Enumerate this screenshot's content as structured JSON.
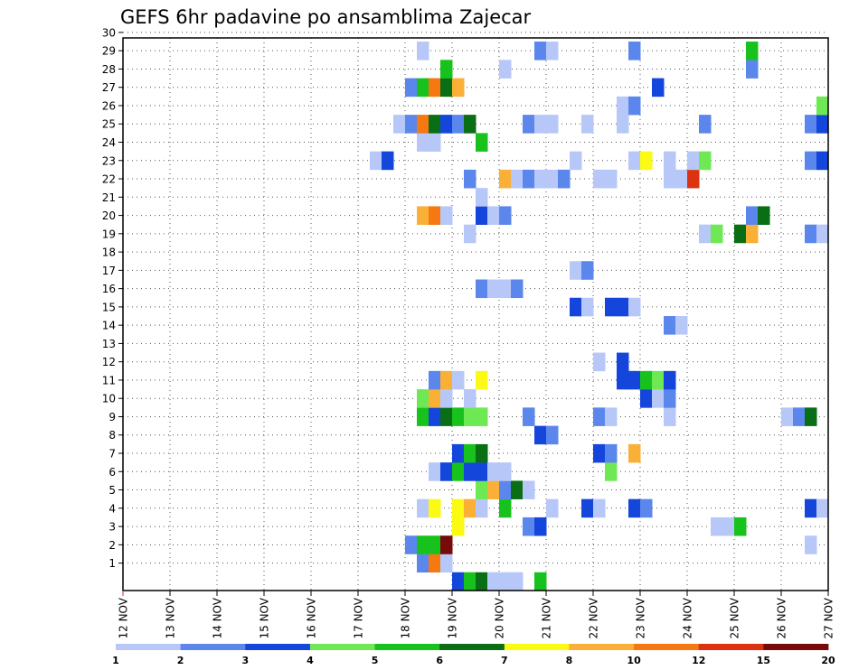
{
  "chart_data": {
    "type": "heatmap",
    "title": "GEFS 6hr padavine po ansamblima Zajecar",
    "xlabel": "",
    "ylabel": "",
    "x_tick_labels": [
      "12 NOV",
      "13 NOV",
      "14 NOV",
      "15 NOV",
      "16 NOV",
      "17 NOV",
      "18 NOV",
      "19 NOV",
      "20 NOV",
      "21 NOV",
      "22 NOV",
      "23 NOV",
      "24 NOV",
      "25 NOV",
      "26 NOV",
      "27 NOV"
    ],
    "x_range_days": [
      12,
      27
    ],
    "y_tick_labels": [
      "1",
      "2",
      "3",
      "4",
      "5",
      "6",
      "7",
      "8",
      "9",
      "10",
      "11",
      "12",
      "13",
      "14",
      "15",
      "16",
      "17",
      "18",
      "19",
      "20",
      "21",
      "22",
      "23",
      "24",
      "25",
      "26",
      "27",
      "28",
      "29",
      "30"
    ],
    "y_range_members": [
      0,
      30
    ],
    "grid": true,
    "colorbar": {
      "placement": "bottom",
      "boundaries": [
        "1",
        "2",
        "3",
        "4",
        "5",
        "6",
        "7",
        "8",
        "10",
        "12",
        "15",
        "20"
      ],
      "colors": [
        "#b7c8f8",
        "#5b87ec",
        "#1446dc",
        "#6ee954",
        "#18c21c",
        "#0a6e14",
        "#fafa14",
        "#faaf37",
        "#f57810",
        "#dc3210",
        "#780a0a"
      ]
    },
    "cells_note": "each cell: [day, member, color_class]; member 0 = bottom strip below member 1",
    "cells": [
      [
        19,
        0,
        3
      ],
      [
        19.25,
        0,
        5
      ],
      [
        19.5,
        0,
        6
      ],
      [
        19.75,
        0,
        1
      ],
      [
        20,
        0,
        1
      ],
      [
        20.25,
        0,
        1
      ],
      [
        20.75,
        0,
        5
      ],
      [
        18.25,
        1,
        2
      ],
      [
        18.5,
        1,
        9
      ],
      [
        18.75,
        1,
        1
      ],
      [
        18,
        2,
        2
      ],
      [
        18.25,
        2,
        5
      ],
      [
        18.5,
        2,
        5
      ],
      [
        18.75,
        2,
        11
      ],
      [
        26.5,
        2,
        1
      ],
      [
        19,
        3,
        7
      ],
      [
        20.5,
        3,
        2
      ],
      [
        20.75,
        3,
        3
      ],
      [
        24.5,
        3,
        1
      ],
      [
        24.75,
        3,
        1
      ],
      [
        25,
        3,
        5
      ],
      [
        18.25,
        4,
        1
      ],
      [
        18.5,
        4,
        7
      ],
      [
        19,
        4,
        7
      ],
      [
        19.25,
        4,
        8
      ],
      [
        19.5,
        4,
        1
      ],
      [
        20,
        4,
        5
      ],
      [
        21,
        4,
        1
      ],
      [
        21.75,
        4,
        3
      ],
      [
        22,
        4,
        1
      ],
      [
        22.75,
        4,
        3
      ],
      [
        23,
        4,
        2
      ],
      [
        26.5,
        4,
        3
      ],
      [
        26.75,
        4,
        1
      ],
      [
        19.5,
        5,
        4
      ],
      [
        19.75,
        5,
        8
      ],
      [
        20,
        5,
        2
      ],
      [
        20.25,
        5,
        6
      ],
      [
        20.5,
        5,
        1
      ],
      [
        18.5,
        6,
        1
      ],
      [
        18.75,
        6,
        3
      ],
      [
        19,
        6,
        5
      ],
      [
        19.25,
        6,
        3
      ],
      [
        19.5,
        6,
        3
      ],
      [
        19.75,
        6,
        1
      ],
      [
        20,
        6,
        1
      ],
      [
        22.25,
        6,
        4
      ],
      [
        19,
        7,
        3
      ],
      [
        19.25,
        7,
        5
      ],
      [
        19.5,
        7,
        6
      ],
      [
        22,
        7,
        3
      ],
      [
        22.25,
        7,
        2
      ],
      [
        22.75,
        7,
        8
      ],
      [
        20.75,
        8,
        3
      ],
      [
        21,
        8,
        2
      ],
      [
        18.25,
        9,
        5
      ],
      [
        18.5,
        9,
        3
      ],
      [
        18.75,
        9,
        6
      ],
      [
        19,
        9,
        5
      ],
      [
        19.25,
        9,
        4
      ],
      [
        19.5,
        9,
        4
      ],
      [
        20.5,
        9,
        2
      ],
      [
        22,
        9,
        2
      ],
      [
        22.25,
        9,
        1
      ],
      [
        23.5,
        9,
        1
      ],
      [
        26,
        9,
        1
      ],
      [
        26.25,
        9,
        2
      ],
      [
        26.5,
        9,
        6
      ],
      [
        18.25,
        10,
        4
      ],
      [
        18.5,
        10,
        8
      ],
      [
        18.75,
        10,
        1
      ],
      [
        19.25,
        10,
        1
      ],
      [
        23,
        10,
        3
      ],
      [
        23.25,
        10,
        1
      ],
      [
        23.5,
        10,
        2
      ],
      [
        18.5,
        11,
        2
      ],
      [
        18.75,
        11,
        8
      ],
      [
        19,
        11,
        1
      ],
      [
        19.5,
        11,
        7
      ],
      [
        22.5,
        11,
        3
      ],
      [
        22.75,
        11,
        3
      ],
      [
        23,
        11,
        5
      ],
      [
        23.25,
        11,
        4
      ],
      [
        23.5,
        11,
        3
      ],
      [
        22,
        12,
        1
      ],
      [
        22.5,
        12,
        3
      ],
      [
        23.5,
        14,
        2
      ],
      [
        23.75,
        14,
        1
      ],
      [
        21.5,
        15,
        3
      ],
      [
        21.75,
        15,
        1
      ],
      [
        22.25,
        15,
        3
      ],
      [
        22.5,
        15,
        3
      ],
      [
        22.75,
        15,
        1
      ],
      [
        19.5,
        16,
        2
      ],
      [
        19.75,
        16,
        1
      ],
      [
        20,
        16,
        1
      ],
      [
        20.25,
        16,
        2
      ],
      [
        21.5,
        17,
        1
      ],
      [
        21.75,
        17,
        2
      ],
      [
        19.25,
        19,
        1
      ],
      [
        24.25,
        19,
        1
      ],
      [
        24.5,
        19,
        4
      ],
      [
        25,
        19,
        6
      ],
      [
        25.25,
        19,
        8
      ],
      [
        26.5,
        19,
        2
      ],
      [
        26.75,
        19,
        1
      ],
      [
        18.25,
        20,
        8
      ],
      [
        18.5,
        20,
        9
      ],
      [
        18.75,
        20,
        1
      ],
      [
        19.5,
        20,
        3
      ],
      [
        19.75,
        20,
        1
      ],
      [
        20,
        20,
        2
      ],
      [
        25.25,
        20,
        2
      ],
      [
        25.5,
        20,
        6
      ],
      [
        19.5,
        21,
        1
      ],
      [
        19.25,
        22,
        2
      ],
      [
        20,
        22,
        8
      ],
      [
        20.25,
        22,
        1
      ],
      [
        20.5,
        22,
        2
      ],
      [
        20.75,
        22,
        1
      ],
      [
        21,
        22,
        1
      ],
      [
        21.25,
        22,
        2
      ],
      [
        22,
        22,
        1
      ],
      [
        22.25,
        22,
        1
      ],
      [
        23.5,
        22,
        1
      ],
      [
        23.75,
        22,
        1
      ],
      [
        24,
        22,
        10
      ],
      [
        17.25,
        23,
        1
      ],
      [
        17.5,
        23,
        3
      ],
      [
        21.5,
        23,
        1
      ],
      [
        22.75,
        23,
        1
      ],
      [
        23,
        23,
        7
      ],
      [
        23.5,
        23,
        1
      ],
      [
        24,
        23,
        1
      ],
      [
        24.25,
        23,
        4
      ],
      [
        26.5,
        23,
        2
      ],
      [
        26.75,
        23,
        3
      ],
      [
        18.25,
        24,
        1
      ],
      [
        18.5,
        24,
        1
      ],
      [
        19.5,
        24,
        5
      ],
      [
        17.75,
        25,
        1
      ],
      [
        18,
        25,
        2
      ],
      [
        18.25,
        25,
        9
      ],
      [
        18.5,
        25,
        6
      ],
      [
        18.75,
        25,
        3
      ],
      [
        19,
        25,
        2
      ],
      [
        19.25,
        25,
        6
      ],
      [
        20.5,
        25,
        2
      ],
      [
        20.75,
        25,
        1
      ],
      [
        21,
        25,
        1
      ],
      [
        21.75,
        25,
        1
      ],
      [
        22.5,
        25,
        1
      ],
      [
        24.25,
        25,
        2
      ],
      [
        26.5,
        25,
        2
      ],
      [
        26.75,
        25,
        3
      ],
      [
        22.5,
        26,
        1
      ],
      [
        22.75,
        26,
        2
      ],
      [
        26.75,
        26,
        4
      ],
      [
        18,
        27,
        2
      ],
      [
        18.25,
        27,
        5
      ],
      [
        18.5,
        27,
        9
      ],
      [
        18.75,
        27,
        6
      ],
      [
        19,
        27,
        8
      ],
      [
        23.25,
        27,
        3
      ],
      [
        18.75,
        28,
        5
      ],
      [
        20,
        28,
        1
      ],
      [
        25.25,
        28,
        2
      ],
      [
        18.25,
        29,
        1
      ],
      [
        20.75,
        29,
        2
      ],
      [
        21,
        29,
        1
      ],
      [
        22.75,
        29,
        2
      ],
      [
        25.25,
        29,
        5
      ]
    ]
  }
}
